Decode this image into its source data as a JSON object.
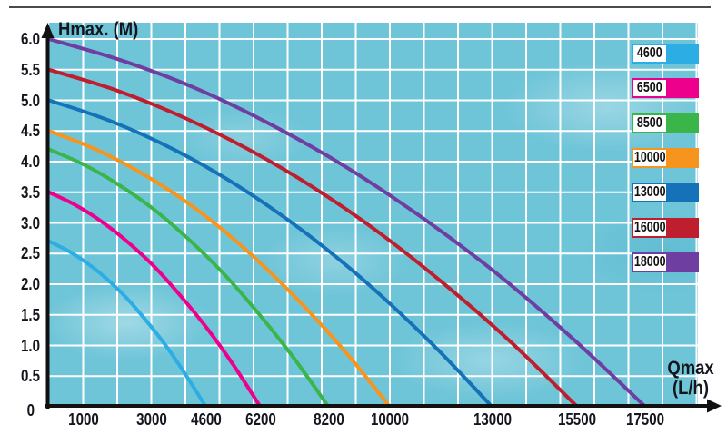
{
  "labels": {
    "y_axis_title": "Hmax. (M)",
    "x_axis_title_line1": "Qmax",
    "x_axis_title_line2": "(L/h)",
    "origin_tick": "0"
  },
  "colors": {
    "plot_background": "#6FC5D8",
    "grid": "#FFFFFF",
    "axis": "#111111",
    "text": "#15151E",
    "top_border": "#4B4B4B"
  },
  "legend": {
    "position": "top-right",
    "items": [
      {
        "label": "4600",
        "color": "#2CADE4"
      },
      {
        "label": "6500",
        "color": "#EC008C"
      },
      {
        "label": "8500",
        "color": "#3AB54A"
      },
      {
        "label": "10000",
        "color": "#F7941E"
      },
      {
        "label": "13000",
        "color": "#1572B8"
      },
      {
        "label": "16000",
        "color": "#BE1E2D"
      },
      {
        "label": "18000",
        "color": "#6E3EA0"
      }
    ]
  },
  "chart_data": {
    "type": "line",
    "title": "",
    "xlabel": "Qmax (L/h)",
    "ylabel": "Hmax. (M)",
    "xlim": [
      0,
      19000
    ],
    "ylim": [
      0,
      6.27
    ],
    "grid": true,
    "x_grid_step": 1000,
    "y_grid_step": 0.5,
    "x_tick_values": [
      1000,
      3000,
      4600,
      6200,
      8200,
      10000,
      13000,
      15500,
      17500
    ],
    "x_tick_labels": [
      "1000",
      "3000",
      "4600",
      "6200",
      "8200",
      "10000",
      "13000",
      "15500",
      "17500"
    ],
    "y_tick_values": [
      6.0,
      5.5,
      5.0,
      4.5,
      4.0,
      3.5,
      3.0,
      2.5,
      2.0,
      1.5,
      1.0,
      0.5
    ],
    "y_tick_labels": [
      "6.0",
      "5.5",
      "5.0",
      "4.5",
      "4.0",
      "3.5",
      "3.0",
      "2.5",
      "2.0",
      "1.5",
      "1.0",
      "0.5"
    ],
    "legend_position": "top-right",
    "series": [
      {
        "name": "4600",
        "color": "#2CADE4",
        "hmax_m": 2.7,
        "qmax_lh": 4600,
        "points": [
          [
            0,
            2.7
          ],
          [
            575,
            2.54
          ],
          [
            1150,
            2.33
          ],
          [
            1725,
            2.07
          ],
          [
            2300,
            1.76
          ],
          [
            2875,
            1.39
          ],
          [
            3450,
            0.98
          ],
          [
            4025,
            0.51
          ],
          [
            4600,
            0
          ]
        ]
      },
      {
        "name": "6500",
        "color": "#EC008C",
        "hmax_m": 3.5,
        "qmax_lh": 6200,
        "points": [
          [
            0,
            3.5
          ],
          [
            775,
            3.29
          ],
          [
            1550,
            3.02
          ],
          [
            2325,
            2.68
          ],
          [
            3100,
            2.28
          ],
          [
            3875,
            1.8
          ],
          [
            4650,
            1.27
          ],
          [
            5425,
            0.67
          ],
          [
            6200,
            0
          ]
        ]
      },
      {
        "name": "8500",
        "color": "#3AB54A",
        "hmax_m": 4.2,
        "qmax_lh": 8200,
        "points": [
          [
            0,
            4.2
          ],
          [
            1025,
            3.95
          ],
          [
            2050,
            3.62
          ],
          [
            3075,
            3.22
          ],
          [
            4100,
            2.73
          ],
          [
            5125,
            2.17
          ],
          [
            6150,
            1.52
          ],
          [
            7175,
            0.8
          ],
          [
            8200,
            0
          ]
        ]
      },
      {
        "name": "10000",
        "color": "#F7941E",
        "hmax_m": 4.5,
        "qmax_lh": 10000,
        "points": [
          [
            0,
            4.5
          ],
          [
            1250,
            4.23
          ],
          [
            2500,
            3.88
          ],
          [
            3750,
            3.45
          ],
          [
            5000,
            2.93
          ],
          [
            6250,
            2.32
          ],
          [
            7500,
            1.63
          ],
          [
            8750,
            0.86
          ],
          [
            10000,
            0
          ]
        ]
      },
      {
        "name": "13000",
        "color": "#1572B8",
        "hmax_m": 5.0,
        "qmax_lh": 13000,
        "points": [
          [
            0,
            5.0
          ],
          [
            1625,
            4.7
          ],
          [
            3250,
            4.31
          ],
          [
            4875,
            3.83
          ],
          [
            6500,
            3.25
          ],
          [
            8125,
            2.58
          ],
          [
            9750,
            1.81
          ],
          [
            11375,
            0.95
          ],
          [
            13000,
            0
          ]
        ]
      },
      {
        "name": "16000",
        "color": "#BE1E2D",
        "hmax_m": 5.5,
        "qmax_lh": 15500,
        "points": [
          [
            0,
            5.5
          ],
          [
            1938,
            5.17
          ],
          [
            3875,
            4.74
          ],
          [
            5813,
            4.21
          ],
          [
            7750,
            3.58
          ],
          [
            9688,
            2.84
          ],
          [
            11625,
            1.99
          ],
          [
            13563,
            1.05
          ],
          [
            15500,
            0
          ]
        ]
      },
      {
        "name": "18000",
        "color": "#6E3EA0",
        "hmax_m": 6.0,
        "qmax_lh": 17500,
        "points": [
          [
            0,
            6.0
          ],
          [
            2188,
            5.64
          ],
          [
            4375,
            5.18
          ],
          [
            6563,
            4.59
          ],
          [
            8750,
            3.9
          ],
          [
            10938,
            3.09
          ],
          [
            13125,
            2.18
          ],
          [
            15313,
            1.14
          ],
          [
            17500,
            0
          ]
        ]
      }
    ]
  }
}
